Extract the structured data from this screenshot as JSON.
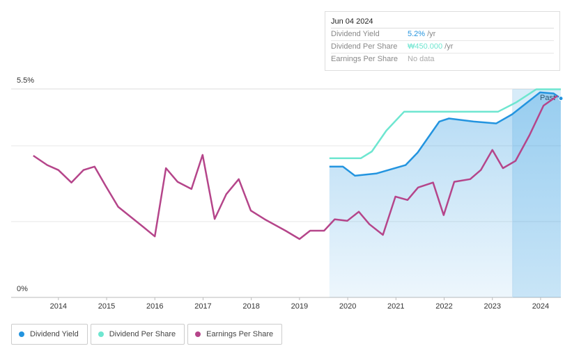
{
  "chart_data": {
    "type": "line",
    "xlim": [
      2013.02,
      2024.42
    ],
    "xticks": [
      2014,
      2015,
      2016,
      2017,
      2018,
      2019,
      2020,
      2021,
      2022,
      2023,
      2024
    ],
    "ylim": [
      0,
      5.5
    ],
    "yticks": [
      {
        "value": 0,
        "label": "0%"
      },
      {
        "value": 5.5,
        "label": "5.5%"
      }
    ],
    "grid_lines": [
      2,
      4
    ],
    "past_region": {
      "label": "Past",
      "start": 2023.42
    },
    "series": [
      {
        "name": "Dividend Yield",
        "color": "#2394df",
        "area": true,
        "x": [
          2019.62,
          2019.9,
          2020.15,
          2020.6,
          2021.2,
          2021.45,
          2021.9,
          2022.1,
          2022.61,
          2023.08,
          2023.41,
          2023.99,
          2024.27,
          2024.42
        ],
        "values": [
          3.45,
          3.45,
          3.21,
          3.27,
          3.49,
          3.82,
          4.64,
          4.72,
          4.64,
          4.59,
          4.83,
          5.41,
          5.38,
          5.25
        ]
      },
      {
        "name": "Dividend Per Share",
        "color": "#6ee6d0",
        "x": [
          2019.62,
          2020.27,
          2020.5,
          2020.8,
          2021.17,
          2023.12,
          2023.5,
          2023.91,
          2024.42
        ],
        "values": [
          3.67,
          3.67,
          3.85,
          4.4,
          4.9,
          4.9,
          5.15,
          5.49,
          5.49
        ]
      },
      {
        "name": "Earnings Per Share",
        "color": "#b5458a",
        "x": [
          2013.48,
          2013.77,
          2014.0,
          2014.27,
          2014.52,
          2014.75,
          2014.98,
          2015.24,
          2015.75,
          2016.0,
          2016.23,
          2016.47,
          2016.76,
          2016.99,
          2017.24,
          2017.48,
          2017.74,
          2017.99,
          2018.28,
          2018.71,
          2019.0,
          2019.22,
          2019.51,
          2019.73,
          2019.99,
          2020.23,
          2020.45,
          2020.73,
          2020.99,
          2021.24,
          2021.46,
          2021.77,
          2021.99,
          2022.21,
          2022.54,
          2022.76,
          2023.0,
          2023.22,
          2023.48,
          2023.77,
          2024.06,
          2024.35
        ],
        "values": [
          3.74,
          3.49,
          3.36,
          3.03,
          3.36,
          3.45,
          2.94,
          2.39,
          1.87,
          1.61,
          3.41,
          3.05,
          2.86,
          3.76,
          2.07,
          2.72,
          3.12,
          2.29,
          2.06,
          1.76,
          1.54,
          1.76,
          1.76,
          2.06,
          2.02,
          2.26,
          1.93,
          1.65,
          2.66,
          2.57,
          2.9,
          3.03,
          2.17,
          3.05,
          3.12,
          3.36,
          3.89,
          3.41,
          3.6,
          4.28,
          5.06,
          5.32
        ]
      }
    ],
    "tooltip": {
      "date": "Jun 04 2024",
      "rows": [
        {
          "label": "Dividend Yield",
          "value": "5.2%",
          "unit": "/yr",
          "color": "#2394df"
        },
        {
          "label": "Dividend Per Share",
          "value": "₩450.000",
          "unit": "/yr",
          "color": "#6ee6d0"
        },
        {
          "label": "Earnings Per Share",
          "value": "No data",
          "color": "#aaaaaa"
        }
      ]
    }
  }
}
